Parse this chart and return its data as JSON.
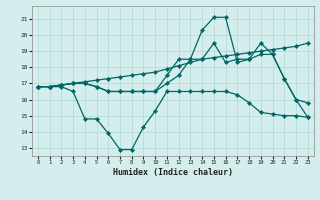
{
  "xlabel": "Humidex (Indice chaleur)",
  "background_color": "#d4eeed",
  "line_color": "#006666",
  "grid_color": "#b0d8d4",
  "xlim": [
    -0.5,
    23.5
  ],
  "ylim": [
    12.5,
    21.8
  ],
  "yticks": [
    13,
    14,
    15,
    16,
    17,
    18,
    19,
    20,
    21
  ],
  "xticks": [
    0,
    1,
    2,
    3,
    4,
    5,
    6,
    7,
    8,
    9,
    10,
    11,
    12,
    13,
    14,
    15,
    16,
    17,
    18,
    19,
    20,
    21,
    22,
    23
  ],
  "lines": [
    {
      "x": [
        0,
        1,
        2,
        3,
        4,
        5,
        6,
        7,
        8,
        9,
        10,
        11,
        12,
        13,
        14,
        15,
        16,
        17,
        18,
        19,
        20,
        21,
        22,
        23
      ],
      "y": [
        16.8,
        16.8,
        16.8,
        16.5,
        14.8,
        14.8,
        13.9,
        12.9,
        12.9,
        14.3,
        15.3,
        16.5,
        16.5,
        16.5,
        16.5,
        16.5,
        16.5,
        16.3,
        15.8,
        15.2,
        15.1,
        15.0,
        15.0,
        14.9
      ]
    },
    {
      "x": [
        0,
        1,
        2,
        3,
        4,
        5,
        6,
        7,
        8,
        9,
        10,
        11,
        12,
        13,
        14,
        15,
        16,
        17,
        18,
        19,
        20,
        21,
        22,
        23
      ],
      "y": [
        16.8,
        16.8,
        16.9,
        17.0,
        17.1,
        17.2,
        17.3,
        17.4,
        17.5,
        17.6,
        17.7,
        17.9,
        18.1,
        18.3,
        18.5,
        18.6,
        18.7,
        18.8,
        18.9,
        19.0,
        19.1,
        19.2,
        19.3,
        19.5
      ]
    },
    {
      "x": [
        0,
        1,
        2,
        3,
        4,
        5,
        6,
        7,
        8,
        9,
        10,
        11,
        12,
        13,
        14,
        15,
        16,
        17,
        18,
        19,
        20,
        21,
        22,
        23
      ],
      "y": [
        16.8,
        16.8,
        16.9,
        17.0,
        17.0,
        16.8,
        16.5,
        16.5,
        16.5,
        16.5,
        16.5,
        17.0,
        17.5,
        18.5,
        18.5,
        19.5,
        18.3,
        18.5,
        18.5,
        18.8,
        18.8,
        17.3,
        16.0,
        15.8
      ]
    },
    {
      "x": [
        0,
        1,
        2,
        3,
        4,
        5,
        6,
        7,
        8,
        9,
        10,
        11,
        12,
        13,
        14,
        15,
        16,
        17,
        18,
        19,
        20,
        21,
        22,
        23
      ],
      "y": [
        16.8,
        16.8,
        16.9,
        17.0,
        17.0,
        16.8,
        16.5,
        16.5,
        16.5,
        16.5,
        16.5,
        17.5,
        18.5,
        18.5,
        20.3,
        21.1,
        21.1,
        18.3,
        18.5,
        19.5,
        18.8,
        17.3,
        16.0,
        14.9
      ]
    }
  ]
}
